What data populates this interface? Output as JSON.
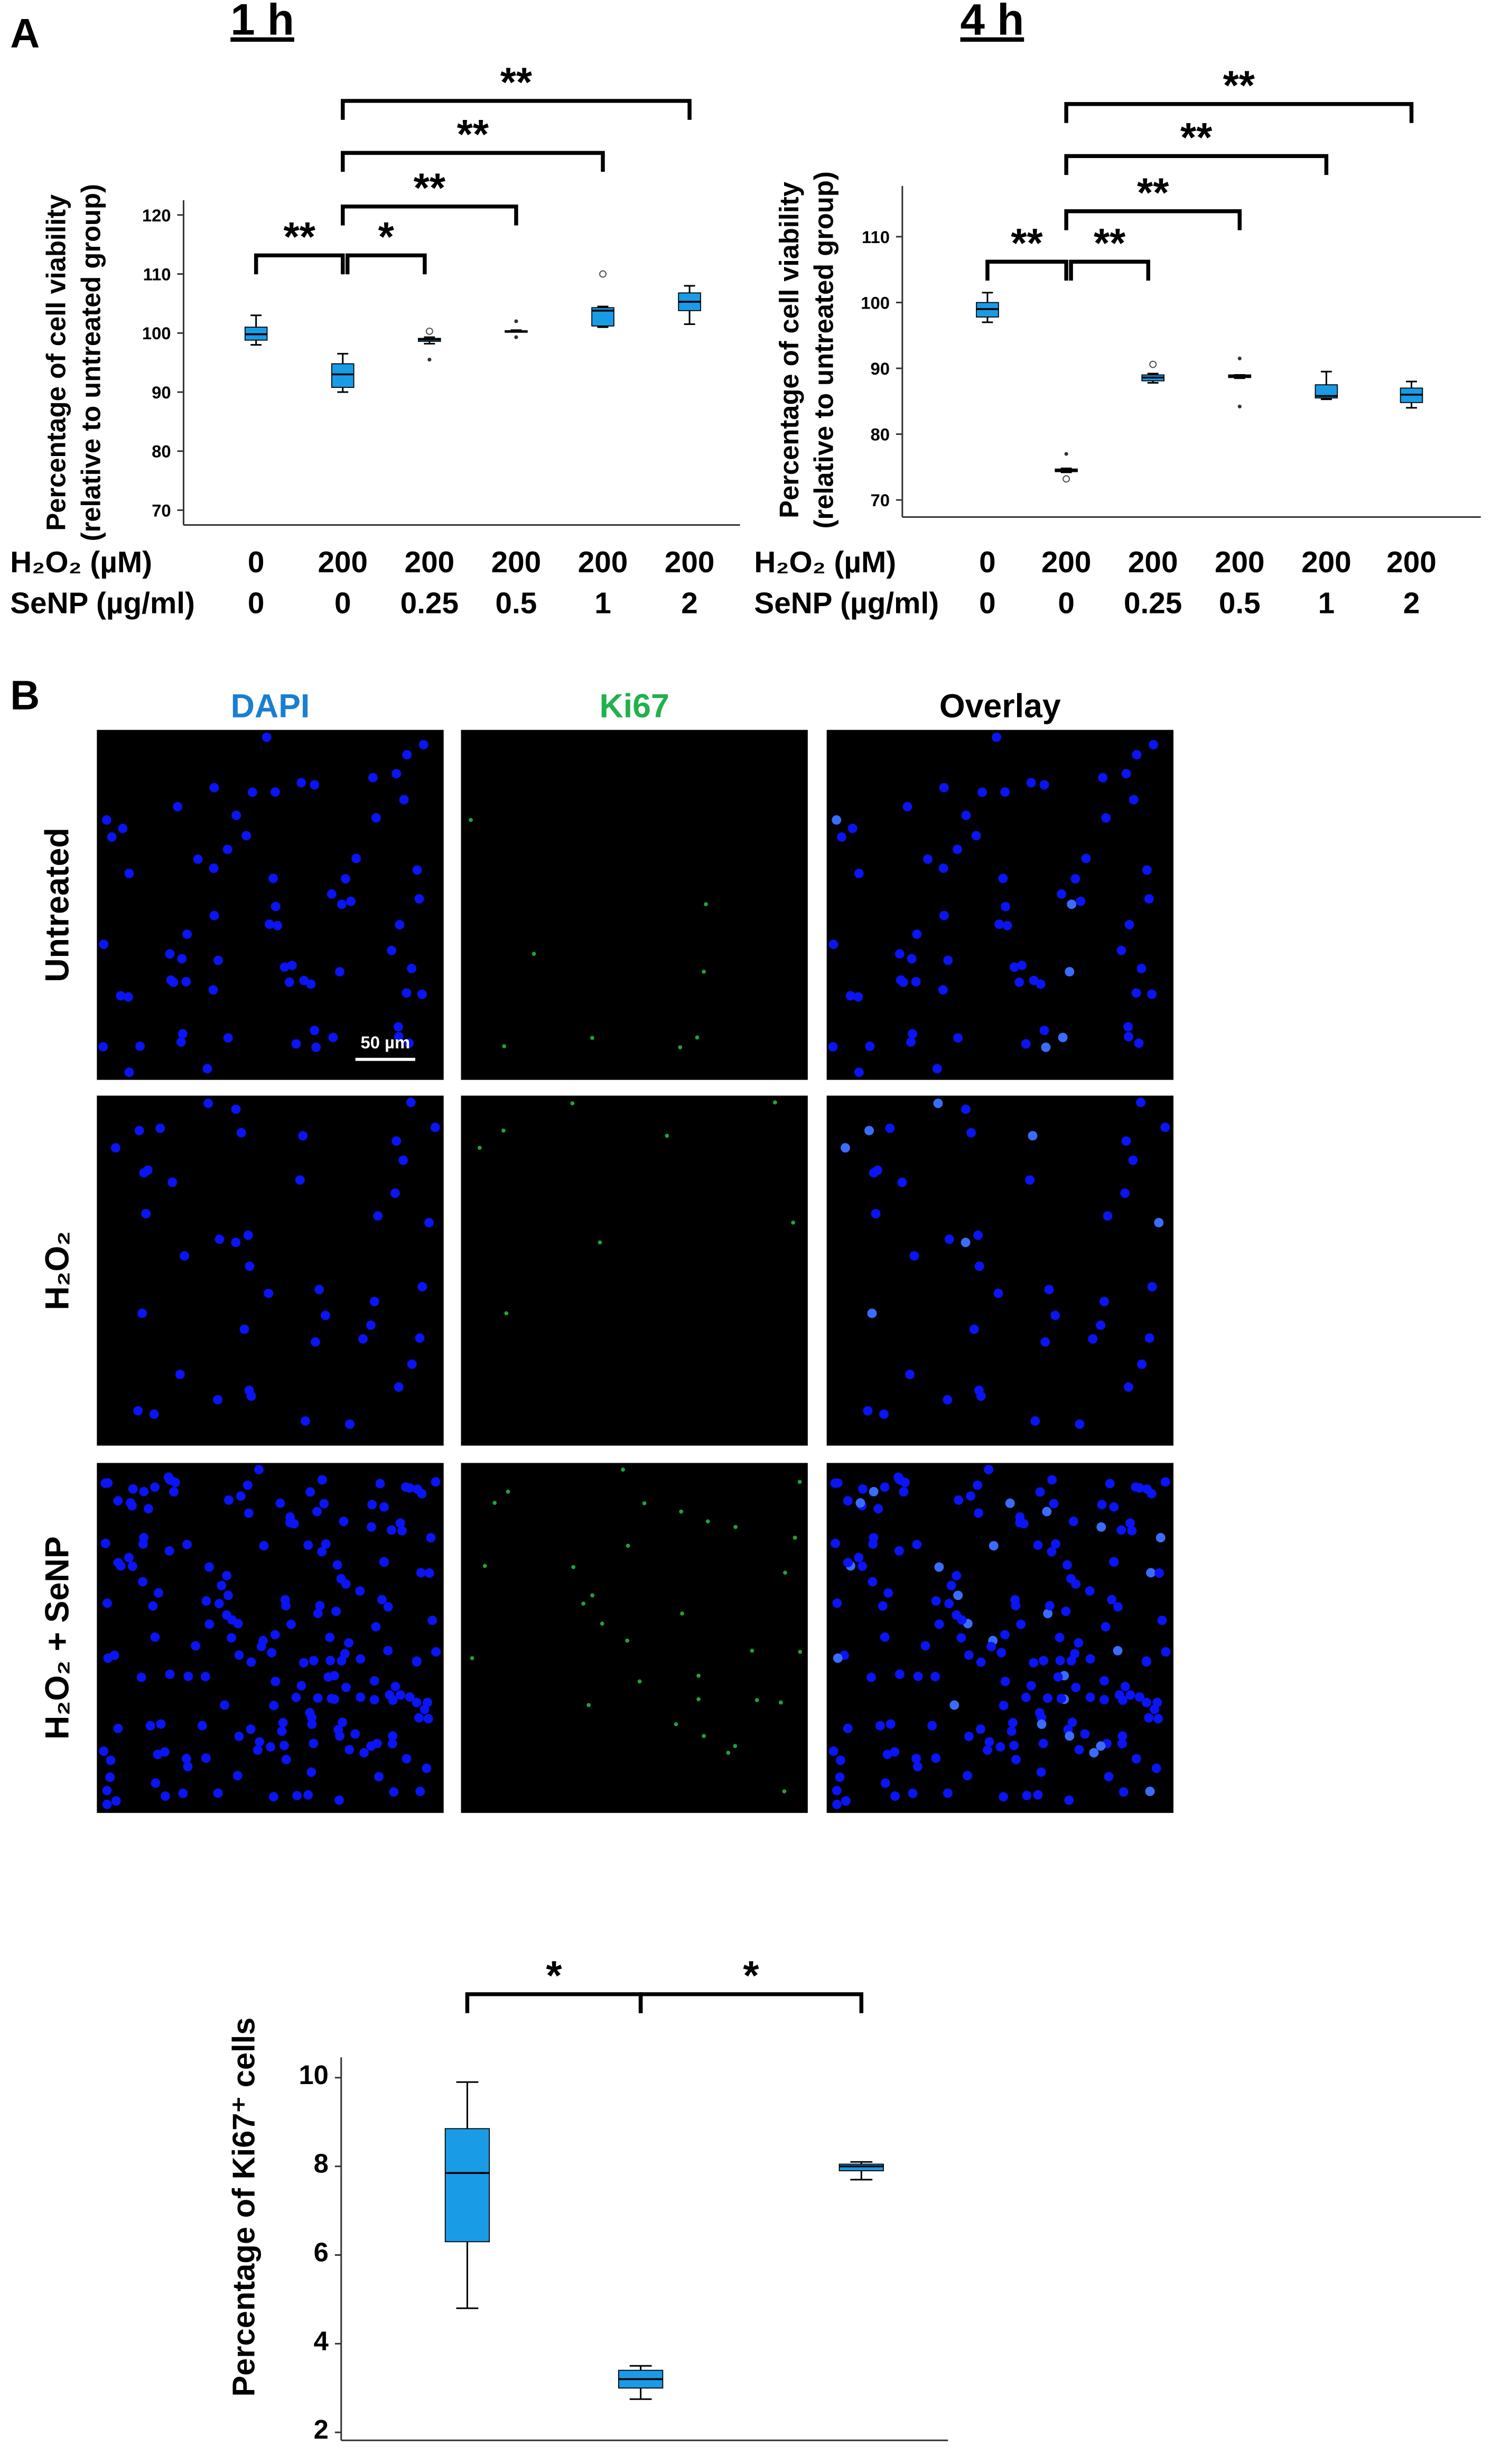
{
  "panel_labels": [
    "A",
    "B"
  ],
  "chart_data": [
    {
      "type": "box",
      "title": "1 h",
      "y_label": [
        "Percentage of cell viability",
        "(relative to untreated group)"
      ],
      "x_rows": [
        {
          "label": "H₂O₂ (µM)",
          "values": [
            "0",
            "200",
            "200",
            "200",
            "200",
            "200"
          ]
        },
        {
          "label": "SeNP (µg/ml)",
          "values": [
            "0",
            "0",
            "0.25",
            "0.5",
            "1",
            "2"
          ]
        }
      ],
      "boxes": [
        {
          "min": 98,
          "q1": 98.8,
          "median": 99.8,
          "q3": 101,
          "max": 103
        },
        {
          "min": 90,
          "q1": 90.8,
          "median": 93,
          "q3": 94.8,
          "max": 96.5
        },
        {
          "min": 98.2,
          "q1": 98.6,
          "median": 98.9,
          "q3": 99.1,
          "max": 99.3,
          "outliers": [
            100.3
          ],
          "extremes": [
            95.5
          ]
        },
        {
          "min": 100.2,
          "q1": 100.2,
          "median": 100.3,
          "q3": 100.4,
          "max": 100.5,
          "extremes": [
            102,
            99.3
          ]
        },
        {
          "min": 101,
          "q1": 101.2,
          "median": 103.8,
          "q3": 104.3,
          "max": 104.5,
          "outliers": [
            110
          ]
        },
        {
          "min": 101.5,
          "q1": 103.8,
          "median": 105.3,
          "q3": 106.8,
          "max": 108
        }
      ],
      "color": "#1a9be6",
      "ylim": [
        67.5,
        122.5
      ],
      "yticks": [
        70,
        80,
        90,
        100,
        110,
        120
      ],
      "brackets": [
        {
          "from": 0,
          "to": 1,
          "label": "**"
        },
        {
          "from": 1,
          "to": 2,
          "label": "*"
        },
        {
          "from": 1,
          "to": 3,
          "label": "**"
        },
        {
          "from": 1,
          "to": 4,
          "label": "**"
        },
        {
          "from": 1,
          "to": 5,
          "label": "**"
        }
      ]
    },
    {
      "type": "box",
      "title": "4 h",
      "y_label": [
        "Percentage of cell viability",
        "(relative to untreated group)"
      ],
      "x_rows": [
        {
          "label": "H₂O₂ (µM)",
          "values": [
            "0",
            "200",
            "200",
            "200",
            "200",
            "200"
          ]
        },
        {
          "label": "SeNP (µg/ml)",
          "values": [
            "0",
            "0",
            "0.25",
            "0.5",
            "1",
            "2"
          ]
        }
      ],
      "boxes": [
        {
          "min": 97,
          "q1": 97.8,
          "median": 99,
          "q3": 100,
          "max": 101.5
        },
        {
          "min": 74.2,
          "q1": 74.3,
          "median": 74.5,
          "q3": 74.7,
          "max": 74.8,
          "outliers": [
            73.2
          ],
          "extremes": [
            77
          ]
        },
        {
          "min": 87.8,
          "q1": 88.1,
          "median": 88.6,
          "q3": 89,
          "max": 89.2,
          "outliers": [
            90.6
          ]
        },
        {
          "min": 88.5,
          "q1": 88.6,
          "median": 88.8,
          "q3": 89,
          "max": 89,
          "extremes": [
            91.5,
            84.2
          ]
        },
        {
          "min": 85.3,
          "q1": 85.5,
          "median": 85.8,
          "q3": 87.5,
          "max": 89.5
        },
        {
          "min": 84,
          "q1": 84.8,
          "median": 86,
          "q3": 87,
          "max": 88
        }
      ],
      "color": "#1a9be6",
      "ylim": [
        67.4,
        117.7
      ],
      "yticks": [
        70,
        80,
        90,
        100,
        110
      ],
      "brackets": [
        {
          "from": 0,
          "to": 1,
          "label": "**"
        },
        {
          "from": 1,
          "to": 2,
          "label": "**"
        },
        {
          "from": 1,
          "to": 3,
          "label": "**"
        },
        {
          "from": 1,
          "to": 4,
          "label": "**"
        },
        {
          "from": 1,
          "to": 5,
          "label": "**"
        }
      ]
    },
    {
      "type": "box",
      "y_label": [
        "Percentage of Ki67⁺ cells"
      ],
      "categories": [
        "Untreated",
        "H₂O₂",
        "H₂O₂ + SeNP"
      ],
      "boxes": [
        {
          "min": 4.8,
          "q1": 6.3,
          "median": 7.85,
          "q3": 8.85,
          "max": 9.9
        },
        {
          "min": 2.75,
          "q1": 3.0,
          "median": 3.2,
          "q3": 3.4,
          "max": 3.5
        },
        {
          "min": 7.7,
          "q1": 7.9,
          "median": 8.0,
          "q3": 8.05,
          "max": 8.1
        }
      ],
      "color": "#1a9be6",
      "ylim": [
        1.82,
        10.46
      ],
      "yticks": [
        2,
        4,
        6,
        8,
        10
      ],
      "brackets": [
        {
          "from": 0,
          "to": 1,
          "label": "*"
        },
        {
          "from": 1,
          "to": 2,
          "label": "*"
        }
      ]
    }
  ],
  "micrographs": {
    "columns": [
      "DAPI",
      "Ki67",
      "Overlay"
    ],
    "rows": [
      "Untreated",
      "H₂O₂",
      "H₂O₂ + SeNP"
    ],
    "scale_bar": "50 µm"
  }
}
